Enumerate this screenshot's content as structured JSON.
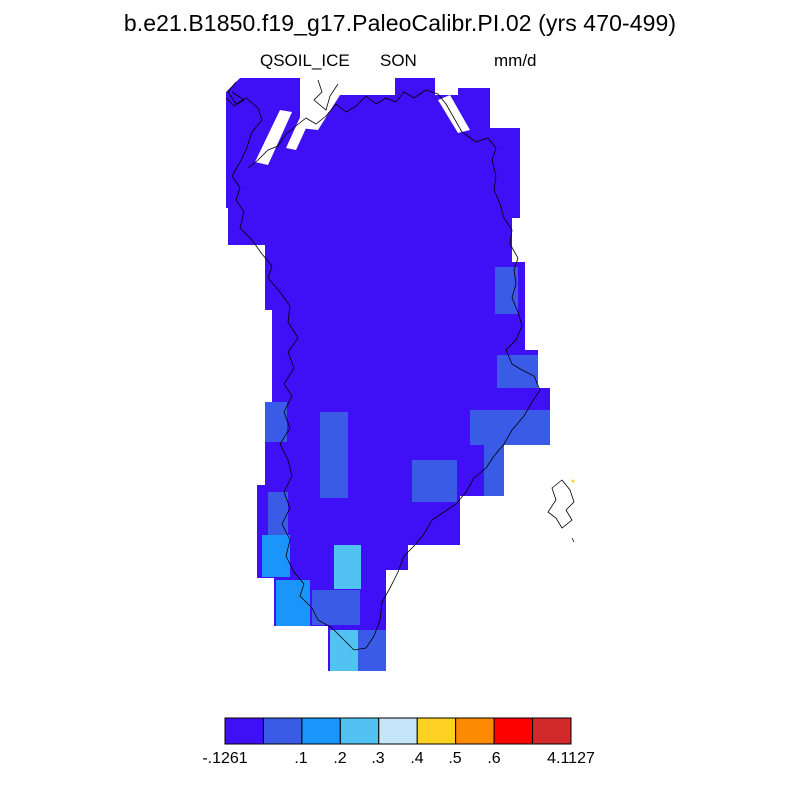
{
  "header": {
    "title": "b.e21.B1850.f19_g17.PaleoCalibr.PI.02 (yrs 470-499)",
    "variable": "QSOIL_ICE",
    "season": "SON",
    "units": "mm/d"
  },
  "colorbar": {
    "labels": [
      "-.1261",
      ".1",
      ".2",
      ".3",
      ".4",
      ".5",
      ".6",
      "4.1127"
    ],
    "colors": [
      "#3f10f6",
      "#3a5be6",
      "#1a96fb",
      "#52c2f2",
      "#c5e6f8",
      "#fdd121",
      "#fd8a00",
      "#fd0000",
      "#d2292b"
    ]
  },
  "map": {
    "region": "Greenland",
    "base_value_color": "#3f10f6",
    "cells_by_color": {
      "#3a5be6": 10,
      "#1a96fb": 2,
      "#52c2f2": 3
    }
  }
}
